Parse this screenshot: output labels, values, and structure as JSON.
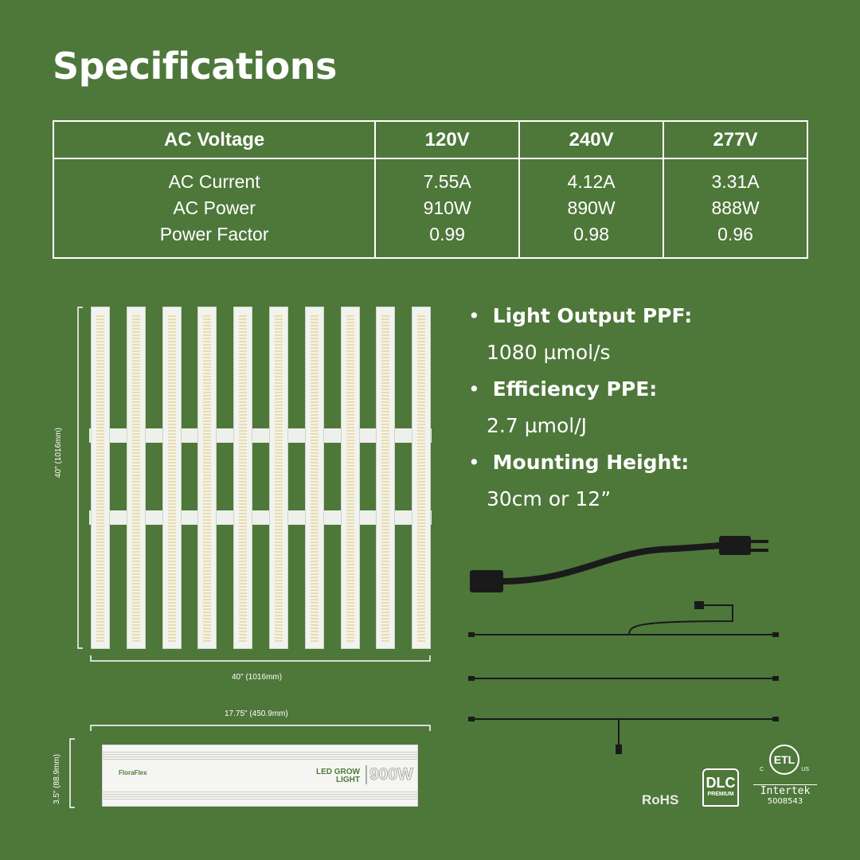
{
  "title": "Specifications",
  "table": {
    "headers": [
      "AC Voltage",
      "120V",
      "240V",
      "277V"
    ],
    "row_labels": [
      "AC Current",
      "AC Power",
      "Power Factor"
    ],
    "columns": [
      [
        "7.55A",
        "910W",
        "0.99"
      ],
      [
        "4.12A",
        "890W",
        "0.98"
      ],
      [
        "3.31A",
        "888W",
        "0.96"
      ]
    ]
  },
  "specs": [
    {
      "label": "Light Output PPF:",
      "value": "1080 µmol/s"
    },
    {
      "label": "Efficiency PPE:",
      "value": "2.7 µmol/J"
    },
    {
      "label": "Mounting Height:",
      "value": "30cm or 12”"
    }
  ],
  "dimensions": {
    "fixture_height": "40\" (1016mm)",
    "fixture_width": "40\" (1016mm)",
    "driver_length": "17.75\" (450.9mm)",
    "driver_height": "3.5\" (88.9mm)"
  },
  "driver": {
    "brand": "FloraFlex",
    "line1": "LED GROW",
    "line2": "LIGHT",
    "wattage": "900W"
  },
  "certifications": {
    "rohs": "RoHS",
    "dlc": "DLC",
    "dlc_sub": "PREMIUM",
    "etl": "ETL",
    "etl_c": "C",
    "etl_us": "US",
    "intertek": "Intertek",
    "intertek_no": "5008543"
  },
  "colors": {
    "background": "#4e773a",
    "text": "#ffffff",
    "brand_green": "#4e7a3a"
  }
}
